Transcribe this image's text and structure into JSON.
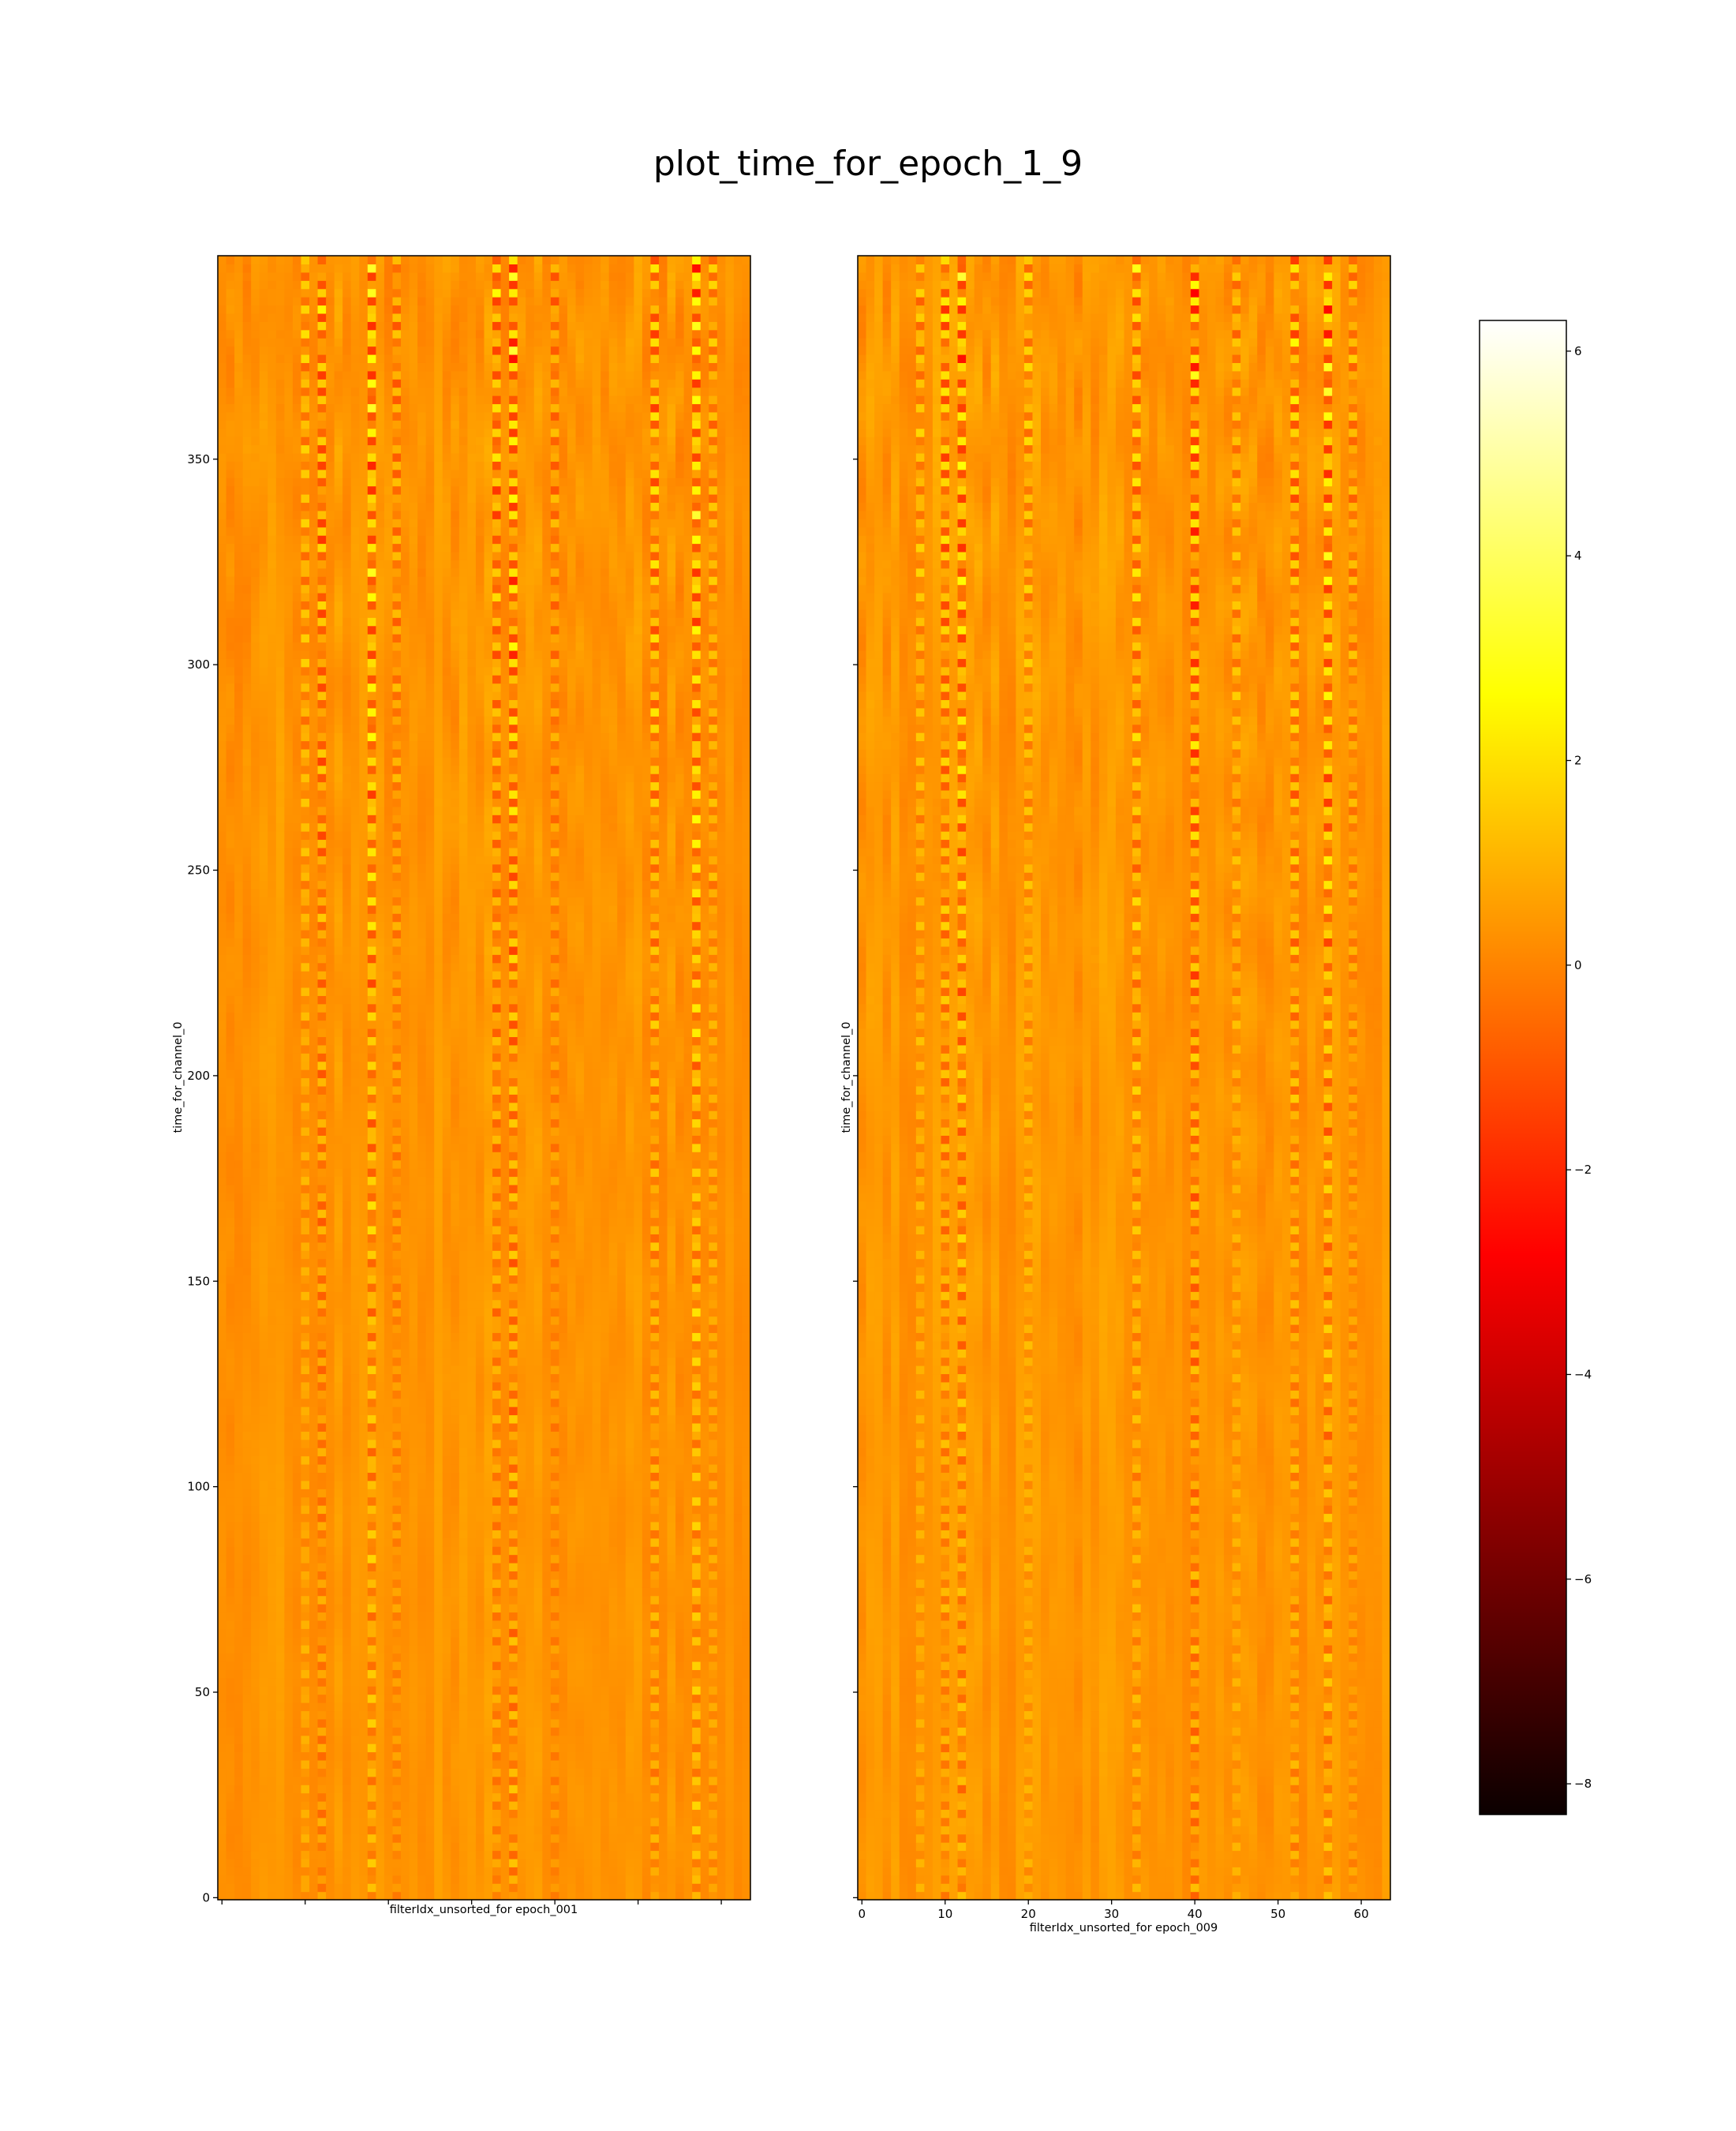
{
  "title": "plot_time_for_epoch_1_9",
  "chart_data": [
    {
      "type": "heatmap",
      "colormap": "hot",
      "xlabel": "filterIdx_unsorted_for epoch_001",
      "ylabel": "time_for_channel_0",
      "xlim": [
        -0.5,
        63.5
      ],
      "ylim": [
        -0.5,
        399.5
      ],
      "x_tick_labels": [],
      "y_ticks": [
        0,
        50,
        100,
        150,
        200,
        250,
        300,
        350
      ],
      "n_columns": 64,
      "n_rows": 400,
      "approx_strong_columns": [
        10,
        12,
        18,
        21,
        33,
        35,
        40,
        52,
        57,
        59
      ],
      "value_range": [
        -8.3,
        6.3
      ]
    },
    {
      "type": "heatmap",
      "colormap": "hot",
      "xlabel": "filterIdx_unsorted_for epoch_009",
      "ylabel": "time_for_channel_0",
      "xlim": [
        -0.5,
        63.5
      ],
      "ylim": [
        -0.5,
        399.5
      ],
      "x_ticks": [
        0,
        10,
        20,
        30,
        40,
        50,
        60
      ],
      "y_ticks": [
        0,
        50,
        100,
        150,
        200,
        250,
        300,
        350
      ],
      "y_tick_labels": [],
      "n_columns": 64,
      "n_rows": 400,
      "approx_strong_columns": [
        7,
        10,
        12,
        20,
        33,
        40,
        45,
        52,
        56,
        59
      ],
      "value_range": [
        -8.3,
        6.3
      ]
    }
  ],
  "colorbar": {
    "colormap": "hot",
    "range": [
      -8.3,
      6.3
    ],
    "ticks": [
      6,
      4,
      2,
      0,
      -2,
      -4,
      -6,
      -8
    ],
    "tick_labels": [
      "6",
      "4",
      "2",
      "0",
      "−2",
      "−4",
      "−6",
      "−8"
    ]
  }
}
